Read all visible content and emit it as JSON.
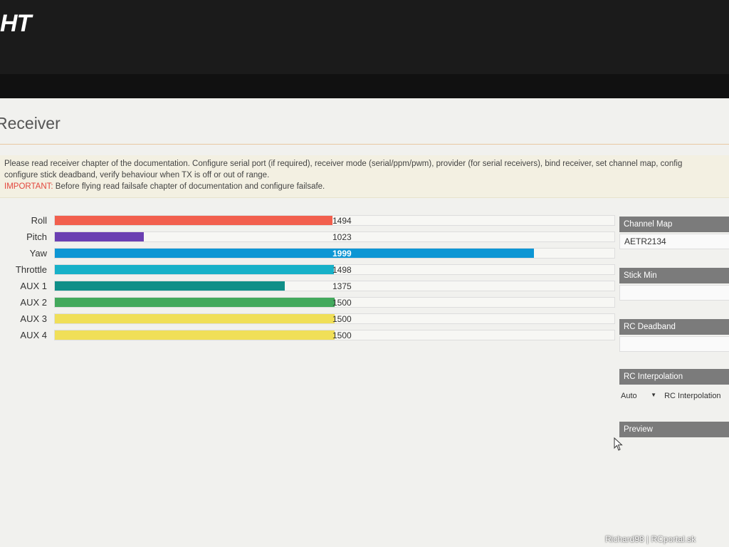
{
  "app": {
    "logo_text": "HT"
  },
  "page": {
    "title": "Receiver"
  },
  "note": {
    "line1": "Please read receiver chapter of the documentation. Configure serial port (if required), receiver mode (serial/ppm/pwm), provider (for serial receivers), bind receiver, set channel map, config",
    "line2": "configure stick deadband, verify behaviour when TX is off or out of range.",
    "important_label": "IMPORTANT:",
    "important_text": " Before flying read failsafe chapter of documentation and configure failsafe."
  },
  "channels": [
    {
      "label": "Roll",
      "value": "1494",
      "color": "#f25f4d"
    },
    {
      "label": "Pitch",
      "value": "1023",
      "color": "#6b3fb2"
    },
    {
      "label": "Yaw",
      "value": "1999",
      "color": "#0d96d4"
    },
    {
      "label": "Throttle",
      "value": "1498",
      "color": "#17b1c8"
    },
    {
      "label": "AUX 1",
      "value": "1375",
      "color": "#0f8f88"
    },
    {
      "label": "AUX 2",
      "value": "1500",
      "color": "#43a95c"
    },
    {
      "label": "AUX 3",
      "value": "1500",
      "color": "#f0df58"
    },
    {
      "label": "AUX 4",
      "value": "1500",
      "color": "#f0df58"
    }
  ],
  "side": {
    "channel_map_label": "Channel Map",
    "channel_map_value": "AETR2134",
    "stick_min_label": "Stick Min",
    "rc_deadband_label": "RC Deadband",
    "rc_interpolation_label": "RC Interpolation",
    "interp_select_value": "Auto",
    "interp_field_label": "RC Interpolation",
    "preview_label": "Preview"
  },
  "watermark": "Richard98 | RCportal.sk"
}
